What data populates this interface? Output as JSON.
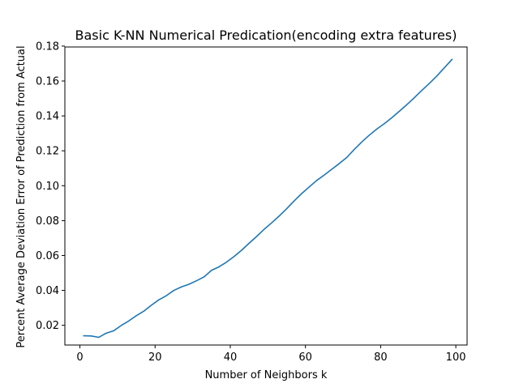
{
  "chart_data": {
    "type": "line",
    "title": "Basic K-NN Numerical Predication(encoding extra features)",
    "xlabel": "Number of Neighbors k",
    "ylabel": "Percent Average Deviation Error of Prediction from Actual",
    "xlim": [
      -4,
      103
    ],
    "ylim": [
      0.0087,
      0.1795
    ],
    "xticks": [
      0,
      20,
      40,
      60,
      80,
      100
    ],
    "yticks": [
      0.02,
      0.04,
      0.06,
      0.08,
      0.1,
      0.12,
      0.14,
      0.16,
      0.18
    ],
    "xtick_labels": [
      "0",
      "20",
      "40",
      "60",
      "80",
      "100"
    ],
    "ytick_labels": [
      "0.02",
      "0.04",
      "0.06",
      "0.08",
      "0.10",
      "0.12",
      "0.14",
      "0.16",
      "0.18"
    ],
    "grid": false,
    "series": [
      {
        "color": "#1f77b4",
        "x": [
          1,
          3,
          5,
          7,
          9,
          11,
          13,
          15,
          17,
          19,
          21,
          23,
          25,
          27,
          29,
          31,
          33,
          35,
          37,
          39,
          41,
          43,
          45,
          47,
          49,
          51,
          53,
          55,
          57,
          59,
          61,
          63,
          65,
          67,
          69,
          71,
          73,
          75,
          77,
          79,
          81,
          83,
          85,
          87,
          89,
          91,
          93,
          95,
          97,
          99
        ],
        "y": [
          0.014,
          0.0139,
          0.0131,
          0.0155,
          0.0169,
          0.0199,
          0.0225,
          0.0255,
          0.0281,
          0.0315,
          0.0346,
          0.037,
          0.04,
          0.042,
          0.0435,
          0.0455,
          0.0477,
          0.0515,
          0.0535,
          0.0562,
          0.0594,
          0.063,
          0.067,
          0.0709,
          0.075,
          0.0787,
          0.0826,
          0.0868,
          0.0913,
          0.0955,
          0.0993,
          0.103,
          0.1061,
          0.1094,
          0.1127,
          0.1162,
          0.1208,
          0.1251,
          0.129,
          0.1325,
          0.1356,
          0.139,
          0.1427,
          0.1465,
          0.1505,
          0.1547,
          0.1587,
          0.163,
          0.1677,
          0.1724
        ]
      }
    ]
  }
}
